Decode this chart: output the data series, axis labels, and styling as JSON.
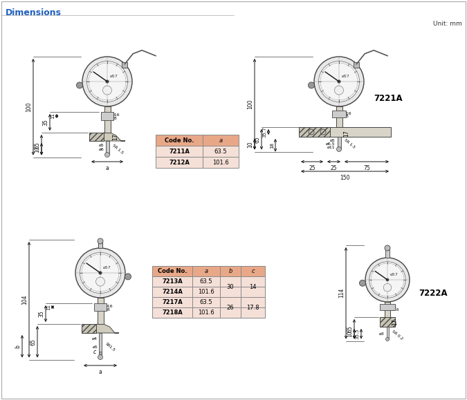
{
  "title": "Dimensions",
  "unit_label": "Unit: mm",
  "bg_color": "#ffffff",
  "title_color": "#2060c0",
  "header_bg": "#e8a888",
  "row_bg": "#f5e0d8",
  "table1_rows": [
    [
      "7211A",
      "63.5"
    ],
    [
      "7212A",
      "101.6"
    ]
  ],
  "table2_rows": [
    [
      "7213A",
      "63.5"
    ],
    [
      "7214A",
      "101.6"
    ],
    [
      "7217A",
      "63.5"
    ],
    [
      "7218A",
      "101.6"
    ]
  ],
  "table2_b": [
    "30",
    "30",
    "26",
    "26"
  ],
  "table2_c": [
    "14",
    "14",
    "17.8",
    "17.8"
  ],
  "label_7221A": "7221A",
  "label_7222A": "7222A",
  "lc": "#111111",
  "fs": 5.5
}
